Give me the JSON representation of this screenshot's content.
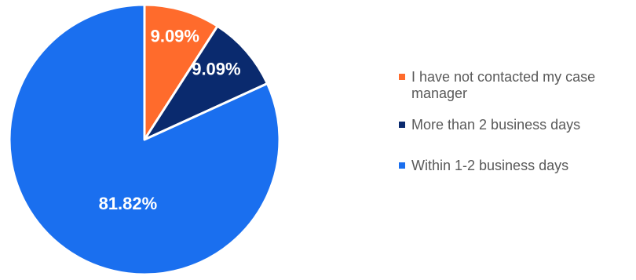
{
  "chart_data": {
    "type": "pie",
    "start_angle_deg": 0,
    "direction": "clockwise",
    "slices": [
      {
        "label": "I have not contacted my case manager",
        "value": 9.09,
        "display": "9.09%",
        "color": "#FF6B2C"
      },
      {
        "label": "More than 2 business days",
        "value": 9.09,
        "display": "9.09%",
        "color": "#0A2A6E"
      },
      {
        "label": "Within 1-2 business days",
        "value": 81.82,
        "display": "81.82%",
        "color": "#1A6FEF"
      }
    ],
    "legend_position": "right"
  }
}
